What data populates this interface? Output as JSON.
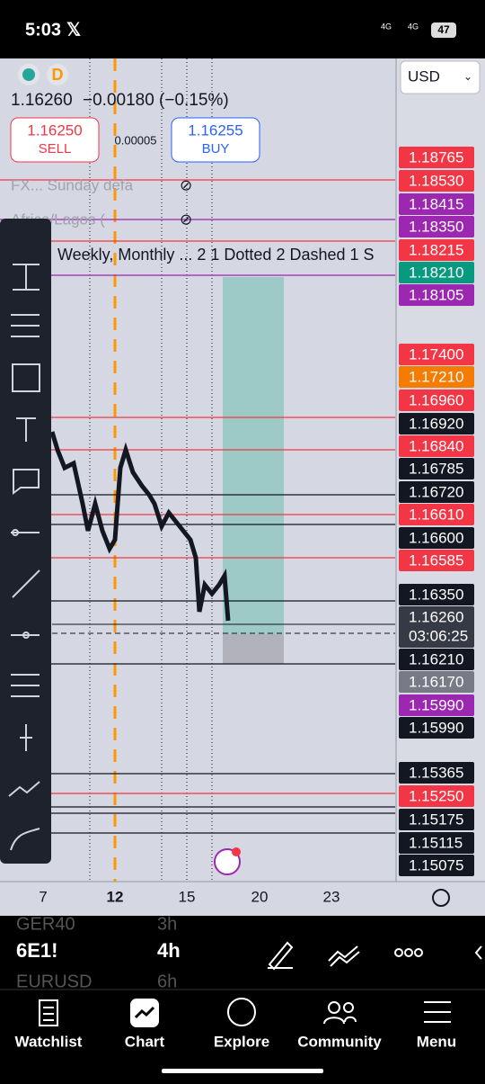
{
  "status": {
    "time": "5:03",
    "net1": "4G",
    "net2": "4G",
    "battery": "47"
  },
  "header": {
    "letter": "D",
    "currency": "USD",
    "quote": "1.16260",
    "change": "−0.00180 (−0.15%)",
    "sell_price": "1.16250",
    "sell_label": "SELL",
    "spread": "0.00005",
    "buy_price": "1.16255",
    "buy_label": "BUY"
  },
  "indicators": [
    "FX... Sunday defa",
    "Africa/Lagos (",
    "Weekly, Monthly ... 2 1 Dotted 2 Dashed 1 S"
  ],
  "price_labels": [
    {
      "text": "1.18765",
      "color": "#f23645"
    },
    {
      "text": "1.18530",
      "color": "#f23645"
    },
    {
      "text": "1.18415",
      "color": "#9c27b0"
    },
    {
      "text": "1.18350",
      "color": "#9c27b0"
    },
    {
      "text": "1.18215",
      "color": "#f23645"
    },
    {
      "text": "1.18210",
      "color": "#089981"
    },
    {
      "text": "1.18105",
      "color": "#9c27b0"
    },
    {
      "text": "1.17400",
      "color": "#f23645"
    },
    {
      "text": "1.17210",
      "color": "#f57c00"
    },
    {
      "text": "1.16960",
      "color": "#f23645"
    },
    {
      "text": "1.16920",
      "color": "#131722"
    },
    {
      "text": "1.16840",
      "color": "#f23645"
    },
    {
      "text": "1.16785",
      "color": "#131722"
    },
    {
      "text": "1.16720",
      "color": "#131722"
    },
    {
      "text": "1.16610",
      "color": "#f23645"
    },
    {
      "text": "1.16600",
      "color": "#131722"
    },
    {
      "text": "1.16585",
      "color": "#f23645"
    },
    {
      "text": "1.16350",
      "color": "#131722"
    },
    {
      "text": "1.16260",
      "color": "#363a45"
    },
    {
      "text": "1.16210",
      "color": "#131722"
    },
    {
      "text": "1.16170",
      "color": "#787b86"
    },
    {
      "text": "1.15990",
      "color": "#9c27b0"
    },
    {
      "text": "1.15990",
      "color": "#131722"
    },
    {
      "text": "1.15365",
      "color": "#131722"
    },
    {
      "text": "1.15250",
      "color": "#f23645"
    },
    {
      "text": "1.15175",
      "color": "#131722"
    },
    {
      "text": "1.15115",
      "color": "#131722"
    },
    {
      "text": "1.15075",
      "color": "#131722"
    }
  ],
  "countdown": "03:06:25",
  "x_axis": [
    "7",
    "12",
    "15",
    "20",
    "23"
  ],
  "toolbar": {
    "row1": [
      "GER40",
      "3h"
    ],
    "row2": [
      "6E1!",
      "4h"
    ],
    "row3": [
      "EURUSD",
      "6h"
    ]
  },
  "nav": [
    "Watchlist",
    "Chart",
    "Explore",
    "Community",
    "Menu"
  ]
}
